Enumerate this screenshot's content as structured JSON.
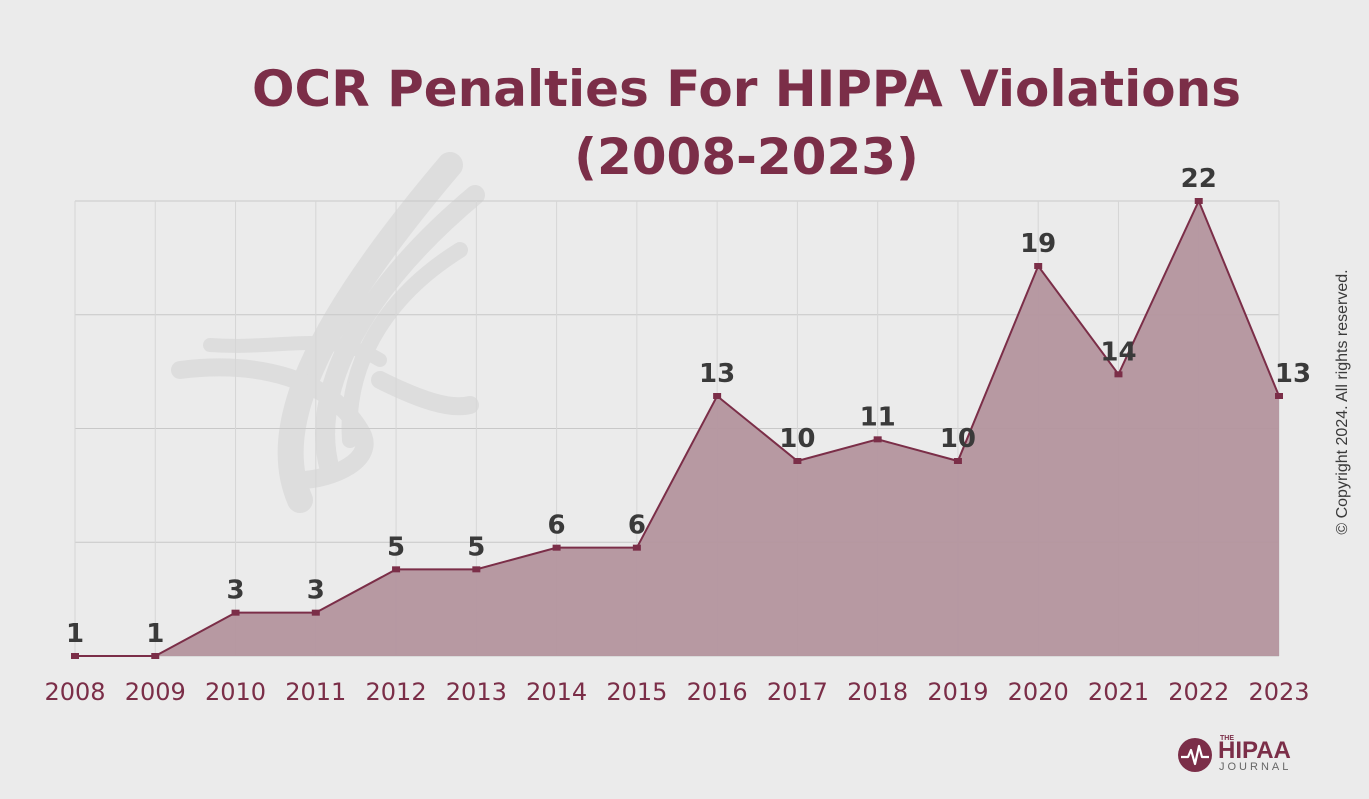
{
  "chart_data": {
    "type": "area",
    "title_line1": "OCR Penalties For HIPPA Violations",
    "title_line2": "(2008-2023)",
    "categories": [
      "2008",
      "2009",
      "2010",
      "2011",
      "2012",
      "2013",
      "2014",
      "2015",
      "2016",
      "2017",
      "2018",
      "2019",
      "2020",
      "2021",
      "2022",
      "2023"
    ],
    "values": [
      1,
      1,
      3,
      3,
      5,
      5,
      6,
      6,
      13,
      10,
      11,
      10,
      19,
      14,
      22,
      13
    ],
    "ylim": [
      1,
      22
    ],
    "grid": true,
    "xlabel": "",
    "ylabel": "",
    "colors": {
      "fill": "#b4959e",
      "line": "#7b2e48",
      "labels": "#3a3a3a",
      "title": "#7b2e48"
    }
  },
  "copyright": "© Copyright 2024. All rights reserved.",
  "logo": {
    "the": "THE",
    "name": "HIPAA",
    "sub": "JOURNAL"
  },
  "watermark_icon": "hhs-eagle-icon"
}
